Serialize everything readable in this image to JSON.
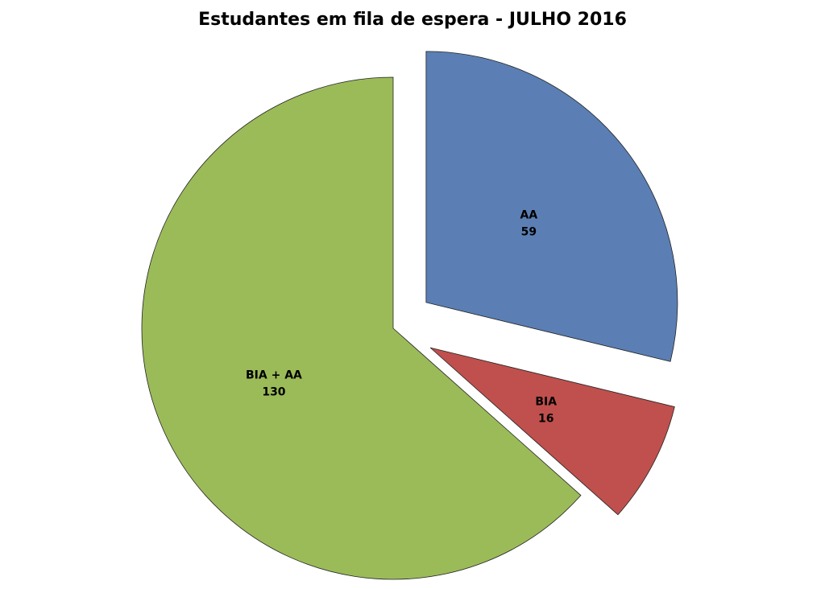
{
  "chart_data": {
    "type": "pie",
    "title": "Estudantes em fila de espera -  JULHO 2016",
    "start_angle": "12 o'clock, clockwise",
    "slices": [
      {
        "label": "AA",
        "value": 59,
        "color": "#5B7FB4",
        "exploded": true
      },
      {
        "label": "BIA",
        "value": 16,
        "color": "#C0504D",
        "exploded": true
      },
      {
        "label": "BIA + AA",
        "value": 130,
        "color": "#9BBB59",
        "exploded": false
      }
    ],
    "legend": "none"
  }
}
